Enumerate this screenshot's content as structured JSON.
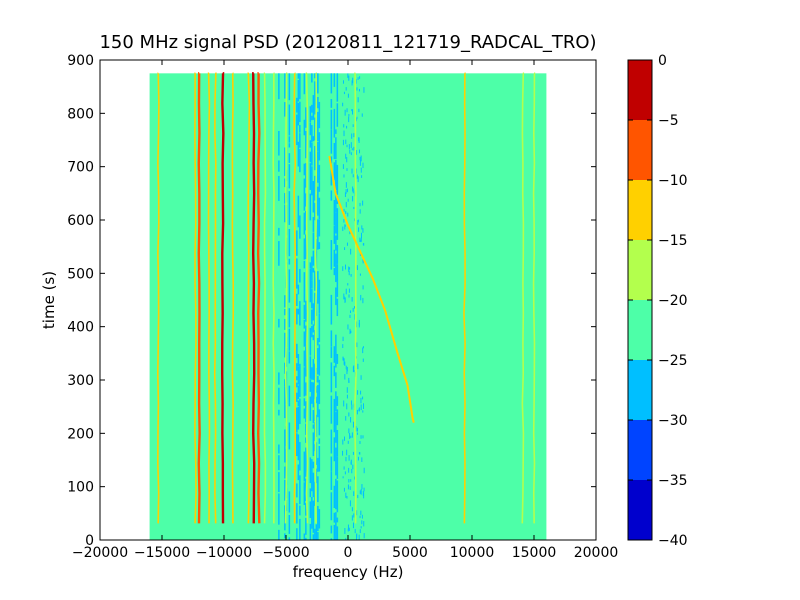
{
  "chart_data": {
    "type": "heatmap",
    "title": "150 MHz signal PSD (20120811_121719_RADCAL_TRO)",
    "xlabel": "frequency (Hz)",
    "ylabel": "time (s)",
    "xlim": [
      -20000,
      20000
    ],
    "ylim": [
      0,
      900
    ],
    "x_ticks": [
      -20000,
      -15000,
      -10000,
      -5000,
      0,
      5000,
      10000,
      15000,
      20000
    ],
    "y_ticks": [
      0,
      100,
      200,
      300,
      400,
      500,
      600,
      700,
      800,
      900
    ],
    "data_extent": {
      "x": [
        -16000,
        16000
      ],
      "y": [
        0,
        875
      ]
    },
    "background_level": -22.5,
    "colorbar": {
      "min": -40,
      "max": 0,
      "ticks": [
        0,
        -5,
        -10,
        -15,
        -20,
        -25,
        -30,
        -35,
        -40
      ],
      "levels": [
        {
          "from": -40,
          "to": -35,
          "color": "#0000cd"
        },
        {
          "from": -35,
          "to": -30,
          "color": "#0044ff"
        },
        {
          "from": -30,
          "to": -25,
          "color": "#00bfff"
        },
        {
          "from": -25,
          "to": -20,
          "color": "#4dffa8"
        },
        {
          "from": -20,
          "to": -15,
          "color": "#b3ff4d"
        },
        {
          "from": -15,
          "to": -10,
          "color": "#ffd000"
        },
        {
          "from": -10,
          "to": -5,
          "color": "#ff5500"
        },
        {
          "from": -5,
          "to": 0,
          "color": "#c00000"
        }
      ]
    },
    "noise_band": {
      "x": [
        -6000,
        -500
      ],
      "level": -27.5
    },
    "vertical_lines": [
      {
        "f": -15300,
        "level": -12.5
      },
      {
        "f": -12300,
        "level": -12.5
      },
      {
        "f": -12000,
        "level": -7.5
      },
      {
        "f": -11200,
        "level": -12.5
      },
      {
        "f": -10700,
        "level": -12.5
      },
      {
        "f": -10100,
        "level": -2.5
      },
      {
        "f": -9300,
        "level": -12.5
      },
      {
        "f": -8000,
        "level": -12.5
      },
      {
        "f": -7600,
        "level": -2.5
      },
      {
        "f": -7200,
        "level": -7.5
      },
      {
        "f": -6700,
        "level": -17.5
      },
      {
        "f": -6000,
        "level": -17.5
      },
      {
        "f": -5000,
        "level": -17.5
      },
      {
        "f": -4300,
        "level": -12.5
      },
      {
        "f": -3300,
        "level": -17.5
      },
      {
        "f": -2600,
        "level": -17.5
      },
      {
        "f": 600,
        "level": -17.5
      },
      {
        "f": 9400,
        "level": -12.5
      },
      {
        "f": 14100,
        "level": -17.5
      },
      {
        "f": 15000,
        "level": -17.5
      }
    ],
    "drift_track": {
      "level": -12.5,
      "points": [
        [
          -1500,
          720
        ],
        [
          -1000,
          650
        ],
        [
          0,
          590
        ],
        [
          1000,
          540
        ],
        [
          2000,
          490
        ],
        [
          3000,
          430
        ],
        [
          4000,
          350
        ],
        [
          4800,
          290
        ],
        [
          5200,
          230
        ],
        [
          5300,
          220
        ]
      ]
    }
  }
}
